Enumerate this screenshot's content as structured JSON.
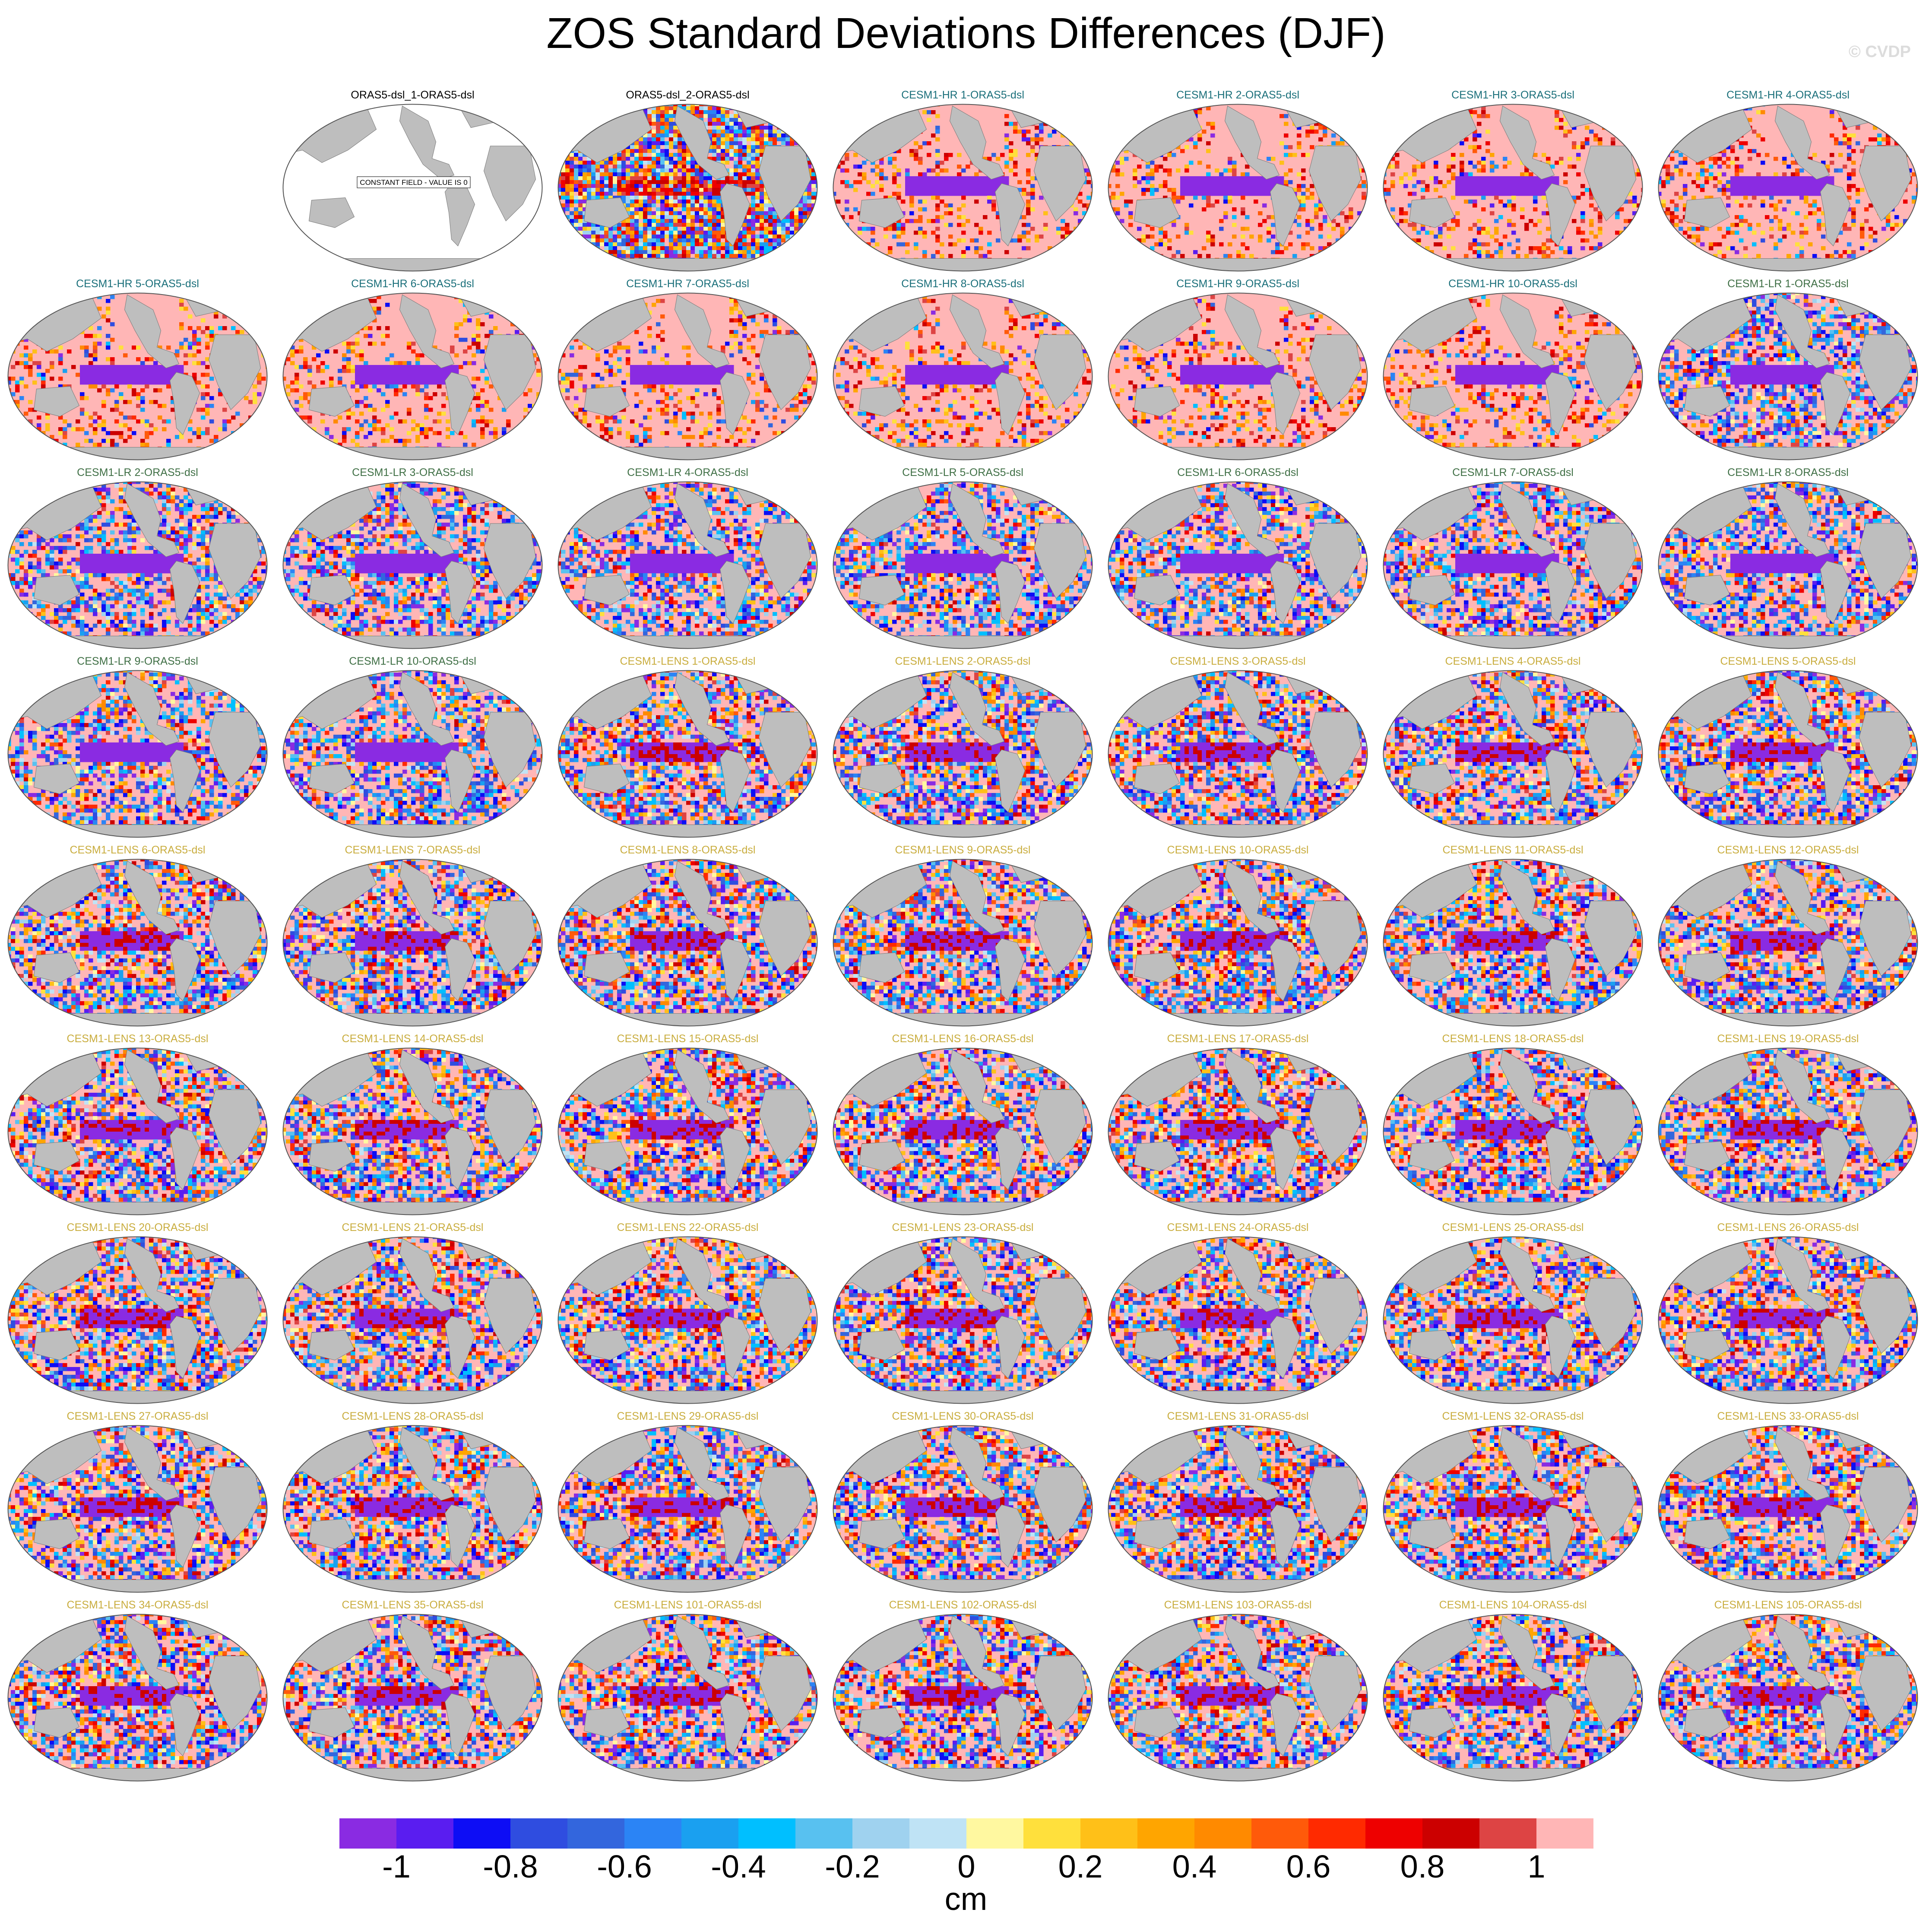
{
  "title": "ZOS Standard Deviations Differences (DJF)",
  "watermark": "© CVDP",
  "colors": {
    "land": "#bebebe",
    "hr_title": "#1a6f7a",
    "lr_title": "#3f6f45",
    "lens_title": "#c9ad3e",
    "obs_title": "#000000"
  },
  "panels": [
    {
      "label": "ORAS5-dsl_1-ORAS5-dsl",
      "group": "obs",
      "constant_note": "CONSTANT FIELD - VALUE IS 0"
    },
    {
      "label": "ORAS5-dsl_2-ORAS5-dsl",
      "group": "obs2"
    },
    {
      "label": "CESM1-HR 1-ORAS5-dsl",
      "group": "hr"
    },
    {
      "label": "CESM1-HR 2-ORAS5-dsl",
      "group": "hr"
    },
    {
      "label": "CESM1-HR 3-ORAS5-dsl",
      "group": "hr"
    },
    {
      "label": "CESM1-HR 4-ORAS5-dsl",
      "group": "hr"
    },
    {
      "label": "CESM1-HR 5-ORAS5-dsl",
      "group": "hr"
    },
    {
      "label": "CESM1-HR 6-ORAS5-dsl",
      "group": "hr"
    },
    {
      "label": "CESM1-HR 7-ORAS5-dsl",
      "group": "hr"
    },
    {
      "label": "CESM1-HR 8-ORAS5-dsl",
      "group": "hr"
    },
    {
      "label": "CESM1-HR 9-ORAS5-dsl",
      "group": "hr"
    },
    {
      "label": "CESM1-HR 10-ORAS5-dsl",
      "group": "hr"
    },
    {
      "label": "CESM1-LR 1-ORAS5-dsl",
      "group": "lr"
    },
    {
      "label": "CESM1-LR 2-ORAS5-dsl",
      "group": "lr"
    },
    {
      "label": "CESM1-LR 3-ORAS5-dsl",
      "group": "lr"
    },
    {
      "label": "CESM1-LR 4-ORAS5-dsl",
      "group": "lr"
    },
    {
      "label": "CESM1-LR 5-ORAS5-dsl",
      "group": "lr"
    },
    {
      "label": "CESM1-LR 6-ORAS5-dsl",
      "group": "lr"
    },
    {
      "label": "CESM1-LR 7-ORAS5-dsl",
      "group": "lr"
    },
    {
      "label": "CESM1-LR 8-ORAS5-dsl",
      "group": "lr"
    },
    {
      "label": "CESM1-LR 9-ORAS5-dsl",
      "group": "lr"
    },
    {
      "label": "CESM1-LR 10-ORAS5-dsl",
      "group": "lr"
    },
    {
      "label": "CESM1-LENS 1-ORAS5-dsl",
      "group": "lens"
    },
    {
      "label": "CESM1-LENS 2-ORAS5-dsl",
      "group": "lens"
    },
    {
      "label": "CESM1-LENS 3-ORAS5-dsl",
      "group": "lens"
    },
    {
      "label": "CESM1-LENS 4-ORAS5-dsl",
      "group": "lens"
    },
    {
      "label": "CESM1-LENS 5-ORAS5-dsl",
      "group": "lens"
    },
    {
      "label": "CESM1-LENS 6-ORAS5-dsl",
      "group": "lens"
    },
    {
      "label": "CESM1-LENS 7-ORAS5-dsl",
      "group": "lens"
    },
    {
      "label": "CESM1-LENS 8-ORAS5-dsl",
      "group": "lens"
    },
    {
      "label": "CESM1-LENS 9-ORAS5-dsl",
      "group": "lens"
    },
    {
      "label": "CESM1-LENS 10-ORAS5-dsl",
      "group": "lens"
    },
    {
      "label": "CESM1-LENS 11-ORAS5-dsl",
      "group": "lens"
    },
    {
      "label": "CESM1-LENS 12-ORAS5-dsl",
      "group": "lens"
    },
    {
      "label": "CESM1-LENS 13-ORAS5-dsl",
      "group": "lens"
    },
    {
      "label": "CESM1-LENS 14-ORAS5-dsl",
      "group": "lens"
    },
    {
      "label": "CESM1-LENS 15-ORAS5-dsl",
      "group": "lens"
    },
    {
      "label": "CESM1-LENS 16-ORAS5-dsl",
      "group": "lens"
    },
    {
      "label": "CESM1-LENS 17-ORAS5-dsl",
      "group": "lens"
    },
    {
      "label": "CESM1-LENS 18-ORAS5-dsl",
      "group": "lens"
    },
    {
      "label": "CESM1-LENS 19-ORAS5-dsl",
      "group": "lens"
    },
    {
      "label": "CESM1-LENS 20-ORAS5-dsl",
      "group": "lens"
    },
    {
      "label": "CESM1-LENS 21-ORAS5-dsl",
      "group": "lens"
    },
    {
      "label": "CESM1-LENS 22-ORAS5-dsl",
      "group": "lens"
    },
    {
      "label": "CESM1-LENS 23-ORAS5-dsl",
      "group": "lens"
    },
    {
      "label": "CESM1-LENS 24-ORAS5-dsl",
      "group": "lens"
    },
    {
      "label": "CESM1-LENS 25-ORAS5-dsl",
      "group": "lens"
    },
    {
      "label": "CESM1-LENS 26-ORAS5-dsl",
      "group": "lens"
    },
    {
      "label": "CESM1-LENS 27-ORAS5-dsl",
      "group": "lens"
    },
    {
      "label": "CESM1-LENS 28-ORAS5-dsl",
      "group": "lens"
    },
    {
      "label": "CESM1-LENS 29-ORAS5-dsl",
      "group": "lens"
    },
    {
      "label": "CESM1-LENS 30-ORAS5-dsl",
      "group": "lens"
    },
    {
      "label": "CESM1-LENS 31-ORAS5-dsl",
      "group": "lens"
    },
    {
      "label": "CESM1-LENS 32-ORAS5-dsl",
      "group": "lens"
    },
    {
      "label": "CESM1-LENS 33-ORAS5-dsl",
      "group": "lens"
    },
    {
      "label": "CESM1-LENS 34-ORAS5-dsl",
      "group": "lens"
    },
    {
      "label": "CESM1-LENS 35-ORAS5-dsl",
      "group": "lens"
    },
    {
      "label": "CESM1-LENS 101-ORAS5-dsl",
      "group": "lens"
    },
    {
      "label": "CESM1-LENS 102-ORAS5-dsl",
      "group": "lens"
    },
    {
      "label": "CESM1-LENS 103-ORAS5-dsl",
      "group": "lens"
    },
    {
      "label": "CESM1-LENS 104-ORAS5-dsl",
      "group": "lens"
    },
    {
      "label": "CESM1-LENS 105-ORAS5-dsl",
      "group": "lens"
    }
  ],
  "colorbar": {
    "colors": [
      "#8a2be2",
      "#5a1df0",
      "#0d0df5",
      "#2f4de0",
      "#3366dd",
      "#2b84f5",
      "#1aa0f0",
      "#00bfff",
      "#58c1f0",
      "#9fd2ef",
      "#bfe3f5",
      "#fff8a0",
      "#ffe03c",
      "#ffc018",
      "#ffa500",
      "#ff8a00",
      "#ff5a0a",
      "#ff2a00",
      "#ee0000",
      "#cc0000",
      "#dd4444",
      "#ffb6b6"
    ],
    "ticks": [
      "-1",
      "-0.8",
      "-0.6",
      "-0.4",
      "-0.2",
      "0",
      "0.2",
      "0.4",
      "0.6",
      "0.8",
      "1"
    ],
    "units": "cm"
  }
}
